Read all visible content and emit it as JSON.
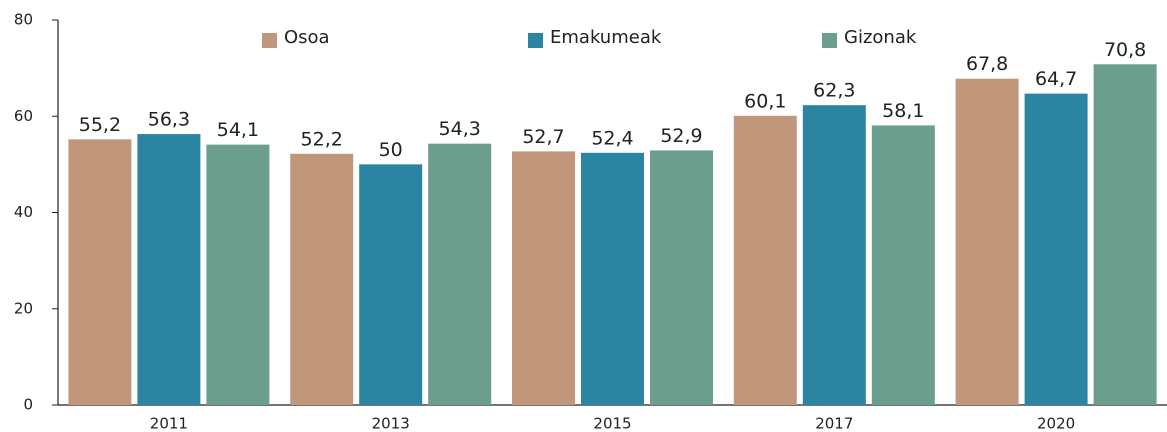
{
  "chart_data": {
    "type": "bar",
    "categories": [
      "2011",
      "2013",
      "2015",
      "2017",
      "2020"
    ],
    "series": [
      {
        "name": "Osoa",
        "color": "#c0977a",
        "values": [
          55.2,
          52.2,
          52.7,
          60.1,
          67.8
        ],
        "value_labels": [
          "55,2",
          "52,2",
          "52,7",
          "60,1",
          "67,8"
        ]
      },
      {
        "name": "Emakumeak",
        "color": "#2a84a2",
        "values": [
          56.3,
          50,
          52.4,
          62.3,
          64.7
        ],
        "value_labels": [
          "56,3",
          "50",
          "52,4",
          "62,3",
          "64,7"
        ]
      },
      {
        "name": "Gizonak",
        "color": "#6b9e8c",
        "values": [
          54.1,
          54.3,
          52.9,
          58.1,
          70.8
        ],
        "value_labels": [
          "54,1",
          "54,3",
          "52,9",
          "58,1",
          "70,8"
        ]
      }
    ],
    "ylim": [
      0,
      80
    ],
    "yticks": [
      0,
      20,
      40,
      60,
      80
    ],
    "grid": false,
    "legend": "top"
  }
}
